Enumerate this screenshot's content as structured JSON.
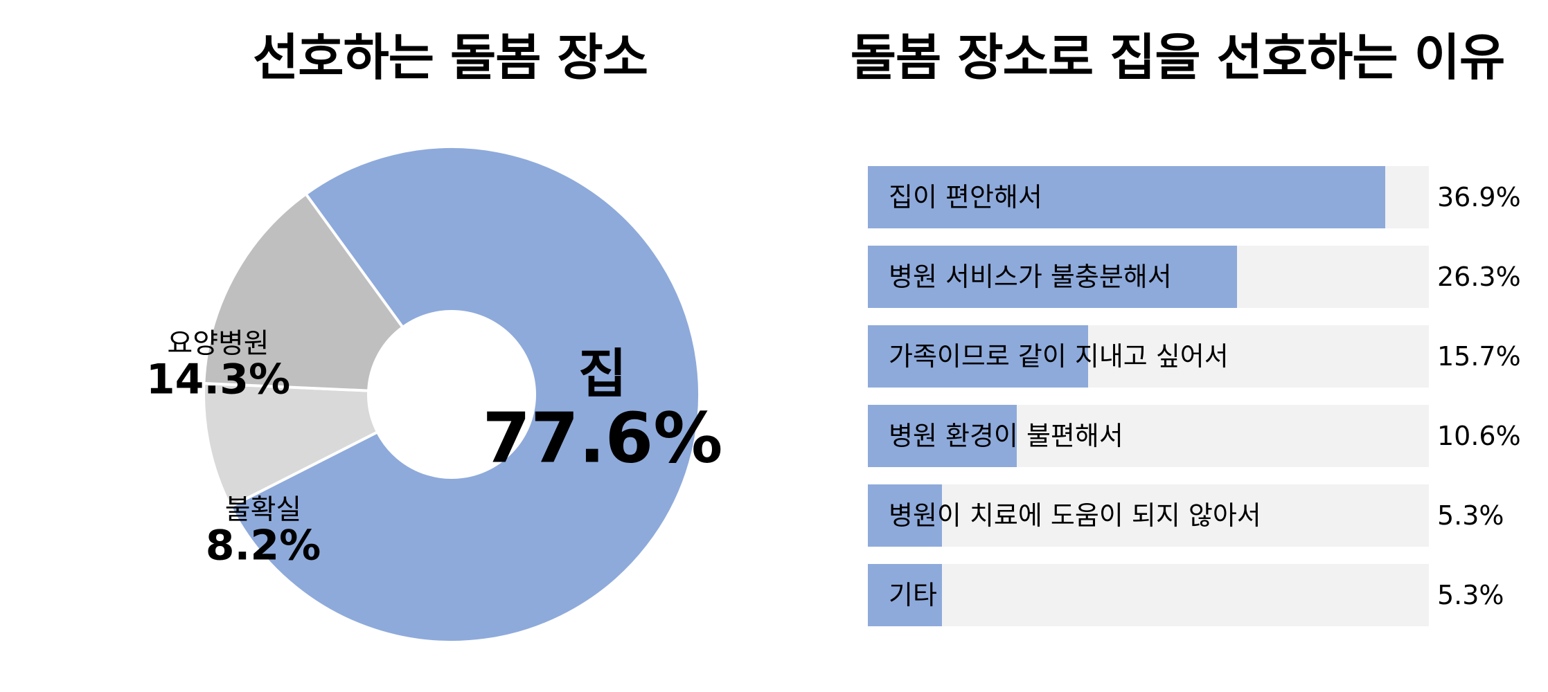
{
  "chart_data": [
    {
      "type": "pie",
      "title": "선호하는 돌봄 장소",
      "donut": true,
      "slices": [
        {
          "label": "집",
          "value": 77.6,
          "display": "77.6%",
          "color": "#8eaadb"
        },
        {
          "label": "불확실",
          "value": 8.2,
          "display": "8.2%",
          "color": "#d9d9d9"
        },
        {
          "label": "요양병원",
          "value": 14.3,
          "display": "14.3%",
          "color": "#bfbfbf"
        }
      ]
    },
    {
      "type": "bar",
      "orientation": "horizontal",
      "title": "돌봄 장소로 집을 선호하는 이유",
      "xlim": [
        0,
        40
      ],
      "bar_color": "#8eaadb",
      "track_color": "#f2f2f2",
      "categories": [
        "집이 편안해서",
        "병원 서비스가 불충분해서",
        "가족이므로 같이 지내고 싶어서",
        "병원 환경이 불편해서",
        "병원이 치료에 도움이 되지 않아서",
        "기타"
      ],
      "values": [
        36.9,
        26.3,
        15.7,
        10.6,
        5.3,
        5.3
      ],
      "value_labels": [
        "36.9%",
        "26.3%",
        "15.7%",
        "10.6%",
        "5.3%",
        "5.3%"
      ]
    }
  ]
}
